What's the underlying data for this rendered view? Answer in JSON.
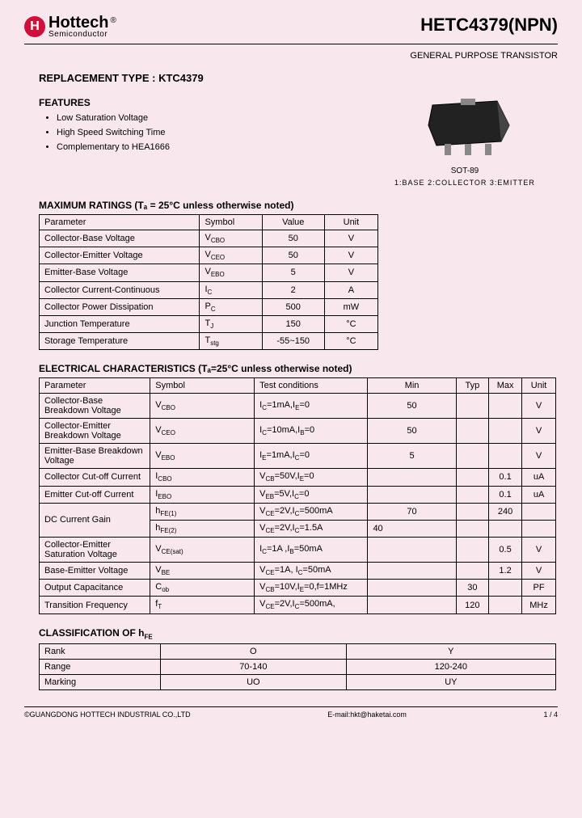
{
  "logo": {
    "icon_letter": "H",
    "brand": "Hottech",
    "subline": "Semiconductor",
    "reg": "®"
  },
  "part_number": "HETC4379(NPN)",
  "subtitle": "GENERAL PURPOSE TRANSISTOR",
  "replacement": "REPLACEMENT TYPE : KTC4379",
  "features_title": "FEATURES",
  "features": [
    "Low Saturation Voltage",
    "High Speed Switching Time",
    "Complementary to HEA1666"
  ],
  "package": {
    "name": "SOT-89",
    "pins": "1:BASE    2:COLLECTOR    3:EMITTER"
  },
  "max_ratings": {
    "title": "MAXIMUM RATINGS (Tₐ = 25°C unless otherwise noted)",
    "headers": [
      "Parameter",
      "Symbol",
      "Value",
      "Unit"
    ],
    "rows": [
      [
        "Collector-Base Voltage",
        "V_CBO",
        "50",
        "V"
      ],
      [
        "Collector-Emitter Voltage",
        "V_CEO",
        "50",
        "V"
      ],
      [
        "Emitter-Base Voltage",
        "V_EBO",
        "5",
        "V"
      ],
      [
        "Collector Current-Continuous",
        "I_C",
        "2",
        "A"
      ],
      [
        "Collector Power Dissipation",
        "P_C",
        "500",
        "mW"
      ],
      [
        "Junction Temperature",
        "T_J",
        "150",
        "°C"
      ],
      [
        "Storage Temperature",
        "T_stg",
        "-55~150",
        "°C"
      ]
    ]
  },
  "elec_char": {
    "title": "ELECTRICAL CHARACTERISTICS (Tₐ=25°C unless otherwise noted)",
    "headers": [
      "Parameter",
      "Symbol",
      "Test conditions",
      "Min",
      "Typ",
      "Max",
      "Unit"
    ],
    "rows": [
      [
        "Collector-Base Breakdown Voltage",
        "V_CBO",
        "I_C=1mA,I_E=0",
        "50",
        "",
        "",
        "V"
      ],
      [
        "Collector-Emitter Breakdown Voltage",
        "V_CEO",
        "I_C=10mA,I_B=0",
        "50",
        "",
        "",
        "V"
      ],
      [
        "Emitter-Base Breakdown Voltage",
        "V_EBO",
        "I_E=1mA,I_C=0",
        "5",
        "",
        "",
        "V"
      ],
      [
        "Collector Cut-off Current",
        "I_CBO",
        "V_CB=50V,I_E=0",
        "",
        "",
        "0.1",
        "uA"
      ],
      [
        "Emitter Cut-off Current",
        "I_EBO",
        "V_EB=5V,I_C=0",
        "",
        "",
        "0.1",
        "uA"
      ],
      [
        "",
        "h_FE(1)",
        "V_CE=2V,I_C=500mA",
        "70",
        "",
        "240",
        ""
      ],
      [
        "",
        "h_FE(2)",
        "V_CE=2V,I_C=1.5A",
        "40",
        "",
        "",
        ""
      ],
      [
        "Collector-Emitter Saturation Voltage",
        "V_CE(sat)",
        "I_C=1A ,I_B=50mA",
        "",
        "",
        "0.5",
        "V"
      ],
      [
        "Base-Emitter Voltage",
        "V_BE",
        "V_CE=1A, I_C=50mA",
        "",
        "",
        "1.2",
        "V"
      ],
      [
        "Output Capacitance",
        "C_ob",
        "V_CB=10V,I_E=0,f=1MHz",
        "",
        "30",
        "",
        "PF"
      ],
      [
        "Transition Frequency",
        "f_T",
        "V_CE=2V,I_C=500mA,",
        "",
        "120",
        "",
        "MHz"
      ]
    ],
    "dc_gain_label": "DC Current Gain"
  },
  "classification": {
    "title": "CLASSIFICATION OF h_FE",
    "rows": [
      [
        "Rank",
        "O",
        "Y"
      ],
      [
        "Range",
        "70-140",
        "120-240"
      ],
      [
        "Marking",
        "UO",
        "UY"
      ]
    ]
  },
  "footer": {
    "left": "©GUANGDONG HOTTECH INDUSTRIAL CO.,LTD",
    "center": "E-mail:hkt@haketai.com",
    "right": "1 / 4"
  }
}
